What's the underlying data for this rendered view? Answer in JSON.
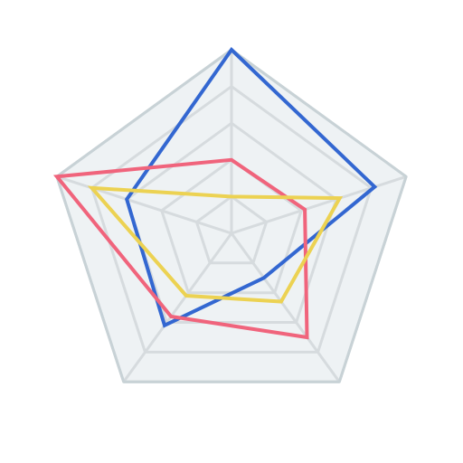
{
  "chart_data": {
    "type": "radar",
    "title": "",
    "axes": [
      "",
      "",
      "",
      "",
      ""
    ],
    "range": [
      0,
      5
    ],
    "grid_levels": 5,
    "grid": true,
    "legend": "none",
    "background_color": "#eef2f4",
    "outline_color": "#c8d2d6",
    "grid_color": "#d6dbde",
    "series": [
      {
        "color": "#3367d1",
        "values": [
          5.0,
          4.1,
          1.5,
          3.1,
          3.0
        ]
      },
      {
        "color": "#f0647c",
        "values": [
          2.0,
          2.1,
          3.5,
          2.8,
          5.0
        ]
      },
      {
        "color": "#ecd252",
        "values": [
          1.0,
          3.1,
          2.3,
          2.1,
          4.0
        ]
      }
    ]
  }
}
